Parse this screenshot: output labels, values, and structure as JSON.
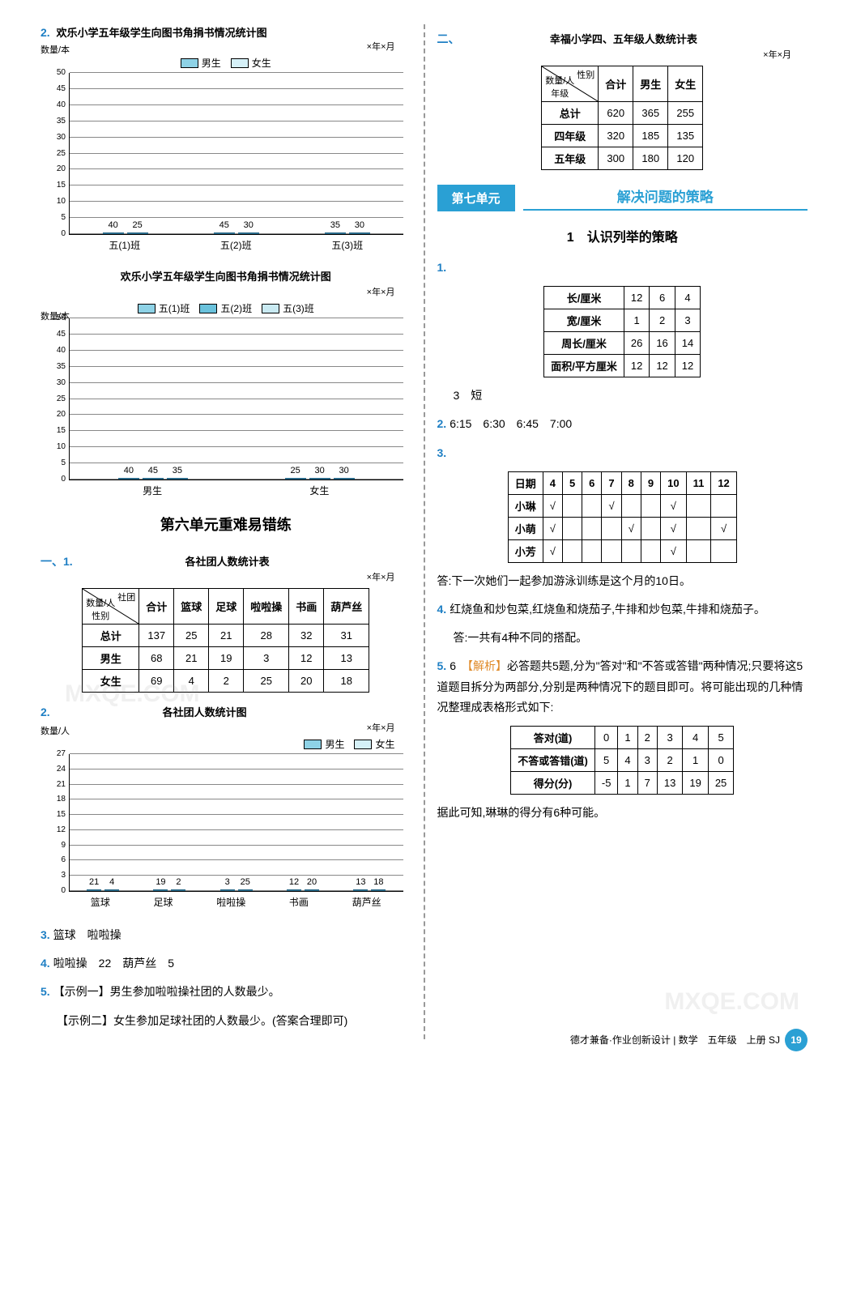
{
  "colors": {
    "boy": "#8ed2e6",
    "girl": "#d5f0f7",
    "gridline": "#888888",
    "accent": "#2aa0d4"
  },
  "chart1": {
    "title": "欢乐小学五年级学生向图书角捐书情况统计图",
    "subtitle": "×年×月",
    "y_label": "数量/本",
    "legend": [
      "男生",
      "女生"
    ],
    "ymax": 50,
    "ystep": 5,
    "groups": [
      {
        "label": "五(1)班",
        "bars": [
          {
            "v": 40,
            "c": "#8ed2e6"
          },
          {
            "v": 25,
            "c": "#d5f0f7"
          }
        ]
      },
      {
        "label": "五(2)班",
        "bars": [
          {
            "v": 45,
            "c": "#8ed2e6"
          },
          {
            "v": 30,
            "c": "#d5f0f7"
          }
        ]
      },
      {
        "label": "五(3)班",
        "bars": [
          {
            "v": 35,
            "c": "#8ed2e6"
          },
          {
            "v": 30,
            "c": "#d5f0f7"
          }
        ]
      }
    ]
  },
  "chart2": {
    "title": "欢乐小学五年级学生向图书角捐书情况统计图",
    "subtitle": "×年×月",
    "y_label": "数量/本",
    "legend": [
      "五(1)班",
      "五(2)班",
      "五(3)班"
    ],
    "legend_colors": [
      "#8ed2e6",
      "#6ac2dc",
      "#c9eaf2"
    ],
    "ymax": 50,
    "ystep": 5,
    "groups": [
      {
        "label": "男生",
        "bars": [
          {
            "v": 40,
            "c": "#8ed2e6"
          },
          {
            "v": 45,
            "c": "#6ac2dc"
          },
          {
            "v": 35,
            "c": "#c9eaf2"
          }
        ]
      },
      {
        "label": "女生",
        "bars": [
          {
            "v": 25,
            "c": "#8ed2e6"
          },
          {
            "v": 30,
            "c": "#6ac2dc"
          },
          {
            "v": 30,
            "c": "#c9eaf2"
          }
        ]
      }
    ]
  },
  "section6_title": "第六单元重难易错练",
  "q1_1": {
    "heading": "一、1.",
    "title": "各社团人数统计表",
    "subtitle": "×年×月",
    "diag_a": "社团",
    "diag_b": "性别",
    "diag_left": "数量/人",
    "cols": [
      "合计",
      "篮球",
      "足球",
      "啦啦操",
      "书画",
      "葫芦丝"
    ],
    "rows": [
      {
        "h": "总计",
        "c": [
          "137",
          "25",
          "21",
          "28",
          "32",
          "31"
        ]
      },
      {
        "h": "男生",
        "c": [
          "68",
          "21",
          "19",
          "3",
          "12",
          "13"
        ]
      },
      {
        "h": "女生",
        "c": [
          "69",
          "4",
          "2",
          "25",
          "20",
          "18"
        ]
      }
    ]
  },
  "chart3": {
    "q": "2.",
    "title": "各社团人数统计图",
    "subtitle": "×年×月",
    "y_label": "数量/人",
    "legend": [
      "男生",
      "女生"
    ],
    "ymax": 27,
    "ystep": 3,
    "groups": [
      {
        "label": "篮球",
        "bars": [
          {
            "v": 21,
            "c": "#d5f0f7"
          },
          {
            "v": 4,
            "c": "#8ed2e6"
          }
        ]
      },
      {
        "label": "足球",
        "bars": [
          {
            "v": 19,
            "c": "#d5f0f7"
          },
          {
            "v": 2,
            "c": "#8ed2e6"
          }
        ]
      },
      {
        "label": "啦啦操",
        "bars": [
          {
            "v": 3,
            "c": "#d5f0f7"
          },
          {
            "v": 25,
            "c": "#8ed2e6"
          }
        ]
      },
      {
        "label": "书画",
        "bars": [
          {
            "v": 12,
            "c": "#d5f0f7"
          },
          {
            "v": 20,
            "c": "#8ed2e6"
          }
        ]
      },
      {
        "label": "葫芦丝",
        "bars": [
          {
            "v": 13,
            "c": "#d5f0f7"
          },
          {
            "v": 18,
            "c": "#8ed2e6"
          }
        ]
      }
    ]
  },
  "q3": "篮球　啦啦操",
  "q4": "啦啦操　22　葫芦丝　5",
  "q5a": "【示例一】男生参加啦啦操社团的人数最少。",
  "q5b": "【示例二】女生参加足球社团的人数最少。(答案合理即可)",
  "q2_heading": "二、",
  "q2_table": {
    "title": "幸福小学四、五年级人数统计表",
    "subtitle": "×年×月",
    "diag_a": "性别",
    "diag_b": "年级",
    "diag_left": "数量/人",
    "cols": [
      "合计",
      "男生",
      "女生"
    ],
    "rows": [
      {
        "h": "总计",
        "c": [
          "620",
          "365",
          "255"
        ]
      },
      {
        "h": "四年级",
        "c": [
          "320",
          "185",
          "135"
        ]
      },
      {
        "h": "五年级",
        "c": [
          "300",
          "180",
          "120"
        ]
      }
    ]
  },
  "unit7": {
    "tab": "第七单元",
    "title": "解决问题的策略"
  },
  "sub1_title": "1　认识列举的策略",
  "t71": {
    "rows": [
      {
        "h": "长/厘米",
        "c": [
          "12",
          "6",
          "4"
        ]
      },
      {
        "h": "宽/厘米",
        "c": [
          "1",
          "2",
          "3"
        ]
      },
      {
        "h": "周长/厘米",
        "c": [
          "26",
          "16",
          "14"
        ]
      },
      {
        "h": "面积/平方厘米",
        "c": [
          "12",
          "12",
          "12"
        ]
      }
    ],
    "after": "3　短"
  },
  "t72": "6:15　6:30　6:45　7:00",
  "t73": {
    "head": [
      "日期",
      "4",
      "5",
      "6",
      "7",
      "8",
      "9",
      "10",
      "11",
      "12"
    ],
    "rows": [
      {
        "h": "小琳",
        "c": [
          "√",
          "",
          "",
          "√",
          "",
          "",
          "√",
          "",
          ""
        ]
      },
      {
        "h": "小萌",
        "c": [
          "√",
          "",
          "",
          "",
          "√",
          "",
          "√",
          "",
          "√"
        ]
      },
      {
        "h": "小芳",
        "c": [
          "√",
          "",
          "",
          "",
          "",
          "",
          "√",
          "",
          ""
        ]
      }
    ],
    "ans": "答:下一次她们一起参加游泳训练是这个月的10日。"
  },
  "t74": {
    "a": "红烧鱼和炒包菜,红烧鱼和烧茄子,牛排和炒包菜,牛排和烧茄子。",
    "b": "答:一共有4种不同的搭配。"
  },
  "t75": {
    "lead": "6　",
    "tag": "【解析】",
    "body": "必答题共5题,分为\"答对\"和\"不答或答错\"两种情况;只要将这5道题目拆分为两部分,分别是两种情况下的题目即可。将可能出现的几种情况整理成表格形式如下:",
    "table": {
      "rows": [
        {
          "h": "答对(道)",
          "c": [
            "0",
            "1",
            "2",
            "3",
            "4",
            "5"
          ]
        },
        {
          "h": "不答或答错(道)",
          "c": [
            "5",
            "4",
            "3",
            "2",
            "1",
            "0"
          ]
        },
        {
          "h": "得分(分)",
          "c": [
            "-5",
            "1",
            "7",
            "13",
            "19",
            "25"
          ]
        }
      ]
    },
    "after": "据此可知,琳琳的得分有6种可能。"
  },
  "footer": {
    "text": "德才兼备·作业创新设计 | 数学　五年级　上册 SJ",
    "page": "19"
  },
  "q_labels": {
    "n2": "2.",
    "n3": "3.",
    "n4": "4.",
    "n5": "5.",
    "n1": "1."
  }
}
